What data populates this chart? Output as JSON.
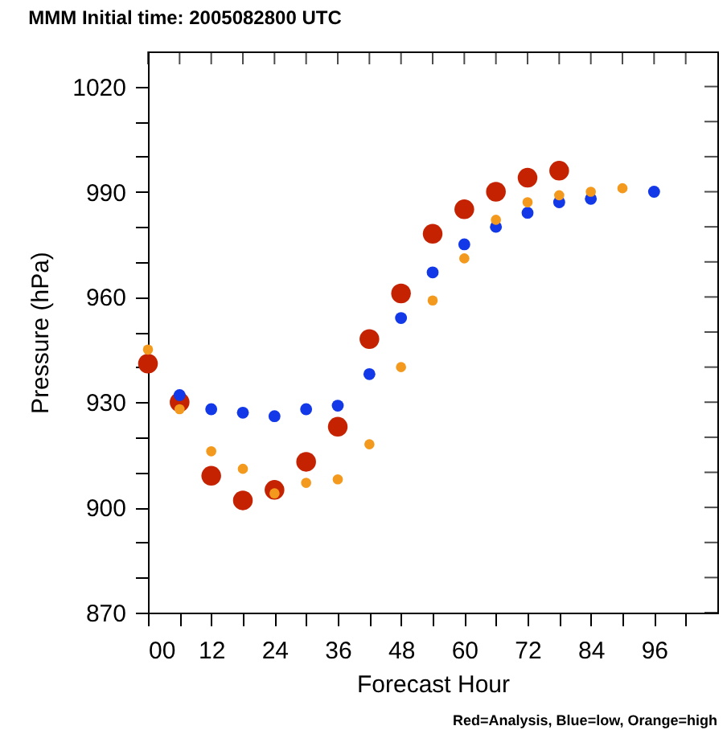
{
  "chart_data": {
    "type": "scatter",
    "title": "MMM Initial time: 2005082800 UTC",
    "xlabel": "Forecast Hour",
    "ylabel": "Pressure (hPa)",
    "annotations": [
      "Red=Analysis, Blue=low, Orange=high"
    ],
    "series": [
      {
        "color": "#c42200",
        "x": [
          0,
          6,
          12,
          18,
          24,
          30,
          36,
          42,
          48,
          54,
          60,
          66,
          72,
          78
        ],
        "values": [
          941,
          930,
          909,
          902,
          905,
          913,
          923,
          948,
          961,
          978,
          985,
          990,
          994,
          996
        ]
      },
      {
        "color": "#1238e8",
        "x": [
          6,
          12,
          18,
          24,
          30,
          36,
          42,
          48,
          54,
          60,
          66,
          72,
          78,
          84,
          96
        ],
        "values": [
          932,
          928,
          927,
          926,
          928,
          929,
          938,
          954,
          967,
          975,
          980,
          984,
          987,
          988,
          990
        ]
      },
      {
        "color": "#f39a1e",
        "x": [
          0,
          6,
          12,
          18,
          24,
          30,
          36,
          42,
          48,
          54,
          60,
          66,
          72,
          78,
          84,
          90
        ],
        "values": [
          945,
          928,
          916,
          911,
          904,
          907,
          908,
          918,
          940,
          959,
          971,
          982,
          987,
          989,
          990,
          991
        ]
      }
    ],
    "xlim": [
      0,
      108
    ],
    "xticks": [
      {
        "value": 0,
        "label": "00"
      },
      {
        "value": 6,
        "label": null
      },
      12,
      {
        "value": 18,
        "label": null
      },
      24,
      {
        "value": 30,
        "label": null
      },
      36,
      {
        "value": 42,
        "label": null
      },
      48,
      {
        "value": 54,
        "label": null
      },
      60,
      {
        "value": 66,
        "label": null
      },
      72,
      {
        "value": 78,
        "label": null
      },
      84,
      {
        "value": 90,
        "label": null
      },
      96,
      {
        "value": 102,
        "label": null
      }
    ],
    "ylim": [
      870,
      1030
    ],
    "yticks": [
      870,
      {
        "value": 880,
        "label": null
      },
      {
        "value": 890,
        "label": null
      },
      900,
      {
        "value": 910,
        "label": null
      },
      {
        "value": 920,
        "label": null
      },
      930,
      {
        "value": 940,
        "label": null
      },
      {
        "value": 950,
        "label": null
      },
      960,
      {
        "value": 970,
        "label": null
      },
      {
        "value": 980,
        "label": null
      },
      990,
      {
        "value": 1000,
        "label": null
      },
      {
        "value": 1010,
        "label": null
      },
      1020
    ],
    "grid": false,
    "marker": "circle",
    "legend": false
  }
}
